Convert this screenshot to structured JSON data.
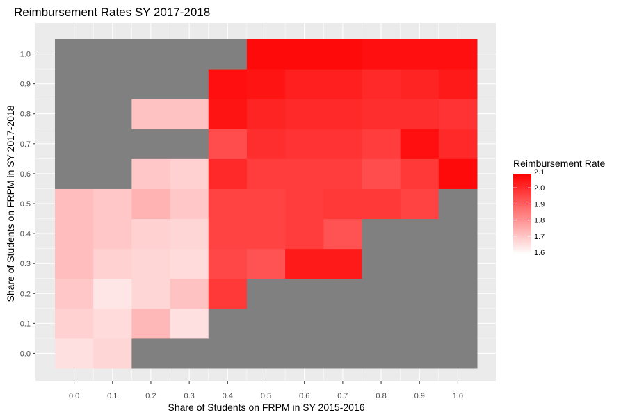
{
  "chart_data": {
    "type": "heatmap",
    "title": "Reimbursement Rates SY 2017-2018",
    "xlabel": "Share of Students on FRPM in SY 2015-2016",
    "ylabel": "Share of Students on FRPM in SY 2017-2018",
    "x_ticks": [
      "0.0",
      "0.1",
      "0.2",
      "0.3",
      "0.4",
      "0.5",
      "0.6",
      "0.7",
      "0.8",
      "0.9",
      "1.0"
    ],
    "y_ticks": [
      "0.0",
      "0.1",
      "0.2",
      "0.3",
      "0.4",
      "0.5",
      "0.6",
      "0.7",
      "0.8",
      "0.9",
      "1.0"
    ],
    "xlim": [
      -0.05,
      1.05
    ],
    "ylim": [
      -0.05,
      1.05
    ],
    "grid": true,
    "missing_color": "#808080",
    "panel_background": "#ebebeb",
    "legend": {
      "title": "Reimbursement Rate",
      "placement": "right",
      "low": 1.6,
      "high": 2.1,
      "low_color": "#ffffff",
      "high_color": "#ff0000",
      "breaks": [
        "2.1",
        "2.0",
        "1.9",
        "1.8",
        "1.7",
        "1.6"
      ]
    },
    "rows_note": "values[i][j] = rate at y = y_ticks[i], x = x_ticks[j]; null = missing",
    "values": [
      [
        1.66,
        1.68,
        null,
        null,
        null,
        null,
        null,
        null,
        null,
        null,
        null
      ],
      [
        1.69,
        1.67,
        1.74,
        1.66,
        null,
        null,
        null,
        null,
        null,
        null,
        null
      ],
      [
        1.71,
        1.65,
        1.68,
        1.72,
        1.99,
        null,
        null,
        null,
        null,
        null,
        null
      ],
      [
        1.73,
        1.69,
        1.68,
        1.67,
        1.96,
        1.94,
        2.05,
        2.05,
        null,
        null,
        null
      ],
      [
        1.73,
        1.71,
        1.69,
        1.68,
        1.97,
        1.97,
        1.98,
        1.94,
        null,
        null,
        null
      ],
      [
        1.73,
        1.71,
        1.75,
        1.71,
        1.97,
        1.97,
        1.98,
        1.99,
        1.99,
        1.97,
        null
      ],
      [
        null,
        null,
        1.71,
        1.69,
        2.02,
        1.98,
        1.98,
        1.98,
        1.95,
        1.99,
        2.08
      ],
      [
        null,
        null,
        null,
        null,
        1.95,
        2.01,
        2.0,
        2.0,
        1.98,
        2.07,
        2.02
      ],
      [
        null,
        null,
        1.72,
        1.72,
        2.06,
        2.03,
        2.02,
        2.02,
        2.01,
        2.01,
        2.0
      ],
      [
        null,
        null,
        null,
        null,
        2.07,
        2.06,
        2.04,
        2.04,
        2.02,
        2.03,
        2.05
      ],
      [
        null,
        null,
        null,
        null,
        null,
        2.08,
        2.08,
        2.08,
        2.07,
        2.07,
        2.07
      ]
    ]
  }
}
